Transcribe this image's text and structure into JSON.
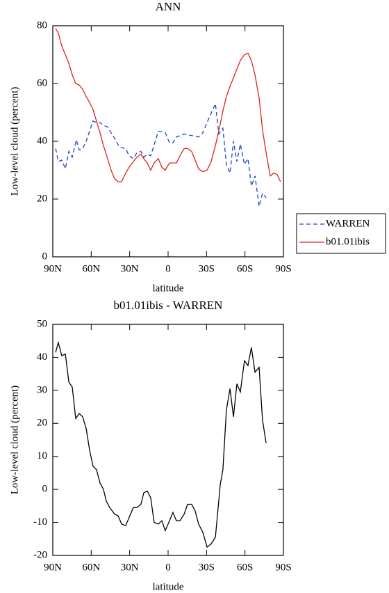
{
  "chart_data": [
    {
      "type": "line",
      "title": "ANN",
      "xlabel": "latitude",
      "ylabel": "Low-level cloud (percent)",
      "xlim": [
        90,
        -90
      ],
      "ylim": [
        0,
        80
      ],
      "xticks": [
        {
          "value": 90,
          "label": "90N"
        },
        {
          "value": 60,
          "label": "60N"
        },
        {
          "value": 30,
          "label": "30N"
        },
        0,
        {
          "value": -30,
          "label": "30S"
        },
        {
          "value": -60,
          "label": "60S"
        },
        {
          "value": -90,
          "label": "90S"
        }
      ],
      "yticks": [
        0,
        20,
        40,
        60,
        80
      ],
      "series": [
        {
          "name": "WARREN",
          "color": "#1f3fcf",
          "style": "dashed",
          "x": [
            87.8,
            85.7,
            83.0,
            80.2,
            77.5,
            74.8,
            71.6,
            69.4,
            66.7,
            64.0,
            58.6,
            55.9,
            53.2,
            50.5,
            47.2,
            44.5,
            41.7,
            38.0,
            33.1,
            30.4,
            27.1,
            24.4,
            21.2,
            19.0,
            16.3,
            13.6,
            7.6,
            2.2,
            -1.1,
            -3.8,
            -6.5,
            -9.8,
            -12.5,
            -18.4,
            -23.8,
            -27.1,
            -30.9,
            -36.9,
            -39.6,
            -42.8,
            -45.5,
            -48.3,
            -51.0,
            -53.7,
            -56.4,
            -59.6,
            -62.3,
            -65.0,
            -67.8,
            -71.0,
            -73.7,
            -76.5
          ],
          "values": [
            37.5,
            33,
            33.5,
            30.5,
            36.5,
            34.5,
            40.5,
            37,
            37.5,
            40,
            47,
            46.5,
            46.5,
            45.5,
            45,
            43,
            41,
            38,
            37.5,
            35,
            34,
            36,
            36.5,
            34.5,
            35.5,
            35,
            43.5,
            43,
            39.5,
            39.5,
            41.5,
            42,
            42.5,
            42,
            41.5,
            43,
            47,
            53,
            42.5,
            44.5,
            32,
            29,
            40,
            33,
            39,
            32,
            34,
            24.5,
            28,
            17.5,
            22,
            20.5
          ]
        },
        {
          "name": "b01.01ibis",
          "color": "#e0201b",
          "style": "solid",
          "x": [
            87.8,
            85.7,
            83.0,
            80.2,
            77.5,
            74.8,
            72.1,
            69.4,
            66.7,
            64.0,
            61.3,
            58.6,
            55.9,
            53.2,
            50.5,
            47.2,
            44.5,
            41.7,
            39.0,
            36.3,
            33.1,
            30.4,
            27.1,
            24.4,
            21.2,
            19.0,
            16.3,
            13.6,
            10.9,
            7.6,
            4.9,
            2.2,
            -1.1,
            -3.8,
            -6.5,
            -9.2,
            -12.5,
            -15.2,
            -18.4,
            -21.1,
            -23.8,
            -27.1,
            -30.4,
            -33.6,
            -36.9,
            -40.7,
            -42.8,
            -45.5,
            -48.3,
            -51.0,
            -53.7,
            -56.4,
            -59.6,
            -62.3,
            -65.0,
            -67.8,
            -71.0,
            -73.7,
            -76.5,
            -79.7,
            -82.4,
            -85.1,
            -87.8
          ],
          "values": [
            79,
            77.5,
            73,
            70,
            67,
            63,
            60,
            59.5,
            58,
            55.5,
            53.5,
            51,
            47,
            43,
            38.5,
            34,
            30,
            27,
            26,
            26,
            29,
            31,
            33,
            34.5,
            35.5,
            34,
            32.5,
            30,
            32.5,
            34,
            31,
            30,
            32.5,
            32.5,
            32.5,
            35,
            37.5,
            37.5,
            36.5,
            33.5,
            30.5,
            29.5,
            30,
            33,
            38.5,
            46,
            50.5,
            55.5,
            59,
            62,
            65,
            68,
            70,
            70.5,
            68,
            63,
            55,
            44,
            36,
            28,
            29,
            28.5,
            26
          ]
        }
      ]
    },
    {
      "type": "line",
      "title": "b01.01ibis - WARREN",
      "xlabel": "latitude",
      "ylabel": "Low-level cloud (percent)",
      "xlim": [
        90,
        -90
      ],
      "ylim": [
        -20,
        50
      ],
      "xticks": [
        {
          "value": 90,
          "label": "90N"
        },
        {
          "value": 60,
          "label": "60N"
        },
        {
          "value": 30,
          "label": "30N"
        },
        0,
        {
          "value": -30,
          "label": "30S"
        },
        {
          "value": -60,
          "label": "60S"
        },
        {
          "value": -90,
          "label": "90S"
        }
      ],
      "yticks": [
        -20,
        -10,
        0,
        10,
        20,
        30,
        40,
        50
      ],
      "series": [
        {
          "color": "#000000",
          "style": "solid",
          "x": [
            87.8,
            85.7,
            83.0,
            80.2,
            77.5,
            74.8,
            72.1,
            69.4,
            66.7,
            64.0,
            61.3,
            58.6,
            55.9,
            53.2,
            50.5,
            48.3,
            45.6,
            41.7,
            39.0,
            36.3,
            33.1,
            30.4,
            27.1,
            24.4,
            21.2,
            19.0,
            16.3,
            13.6,
            10.9,
            7.6,
            4.9,
            2.2,
            -1.1,
            -3.8,
            -6.5,
            -9.2,
            -12.5,
            -15.2,
            -18.4,
            -21.1,
            -23.8,
            -27.1,
            -30.4,
            -33.6,
            -36.9,
            -40.7,
            -42.8,
            -45.5,
            -48.3,
            -51.0,
            -53.7,
            -56.4,
            -59.6,
            -62.3,
            -65.0,
            -67.8,
            -71.0,
            -73.7,
            -76.5
          ],
          "values": [
            41.5,
            44.5,
            40.5,
            41,
            32.5,
            31,
            21.5,
            23,
            22,
            18.5,
            12,
            7,
            6,
            2,
            0,
            -3.5,
            -5.5,
            -7.5,
            -8,
            -10.5,
            -11,
            -8.5,
            -5.5,
            -5.5,
            -4.5,
            -1,
            -0.5,
            -2.5,
            -10,
            -10.5,
            -9.5,
            -12.5,
            -9.5,
            -7,
            -9.5,
            -9.5,
            -7.5,
            -4.5,
            -4.5,
            -6.5,
            -10.5,
            -13,
            -17.5,
            -16.5,
            -14.5,
            1.5,
            6,
            24,
            30.5,
            22,
            32,
            29.5,
            39,
            37.5,
            43,
            35.5,
            37,
            21,
            14
          ]
        }
      ]
    }
  ]
}
